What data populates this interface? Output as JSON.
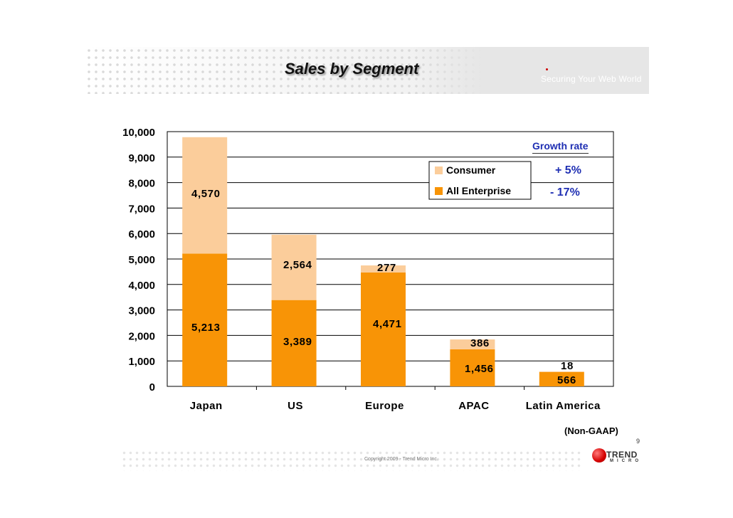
{
  "header": {
    "title": "Sales by Segment",
    "tagline": "Securing Your Web World"
  },
  "growth_rate": {
    "title": "Growth rate",
    "consumer": "+ 5%",
    "enterprise": "- 17%"
  },
  "note": "(Non-GAAP)",
  "page_number": "9",
  "footer": {
    "copyright": "Copyright 2009 - Trend Micro Inc.",
    "logo_top": "TREND",
    "logo_bottom": "MICRO"
  },
  "colors": {
    "consumer": "#fbcd9b",
    "enterprise": "#f89406",
    "growth_text": "#1f2fb3",
    "logo_red": "#d50000"
  },
  "chart_data": {
    "type": "bar",
    "stacked": true,
    "categories": [
      "Japan",
      "US",
      "Europe",
      "APAC",
      "Latin America"
    ],
    "series": [
      {
        "name": "All Enterprise",
        "values": [
          5213,
          3389,
          4471,
          1456,
          566
        ],
        "labels": [
          "5,213",
          "3,389",
          "4,471",
          "1,456",
          "566"
        ]
      },
      {
        "name": "Consumer",
        "values": [
          4570,
          2564,
          277,
          386,
          18
        ],
        "labels": [
          "4,570",
          "2,564",
          "277",
          "386",
          "18"
        ]
      }
    ],
    "ylim": [
      0,
      10000
    ],
    "yticks": [
      "0",
      "1,000",
      "2,000",
      "3,000",
      "4,000",
      "5,000",
      "6,000",
      "7,000",
      "8,000",
      "9,000",
      "10,000"
    ],
    "grid": true,
    "legend_position": "top-right"
  }
}
